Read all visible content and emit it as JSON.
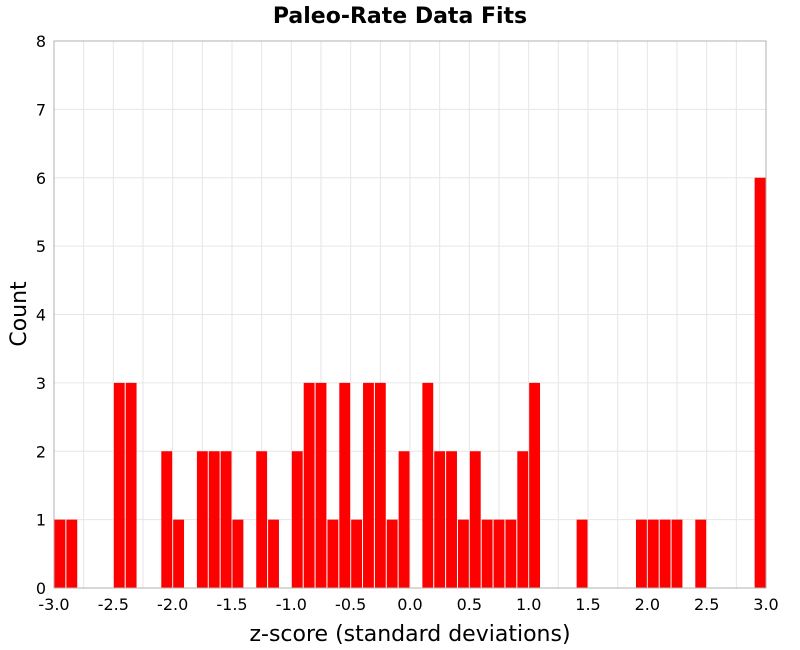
{
  "chart_data": {
    "type": "bar",
    "title": "Paleo-Rate Data Fits",
    "xlabel": "z-score (standard deviations)",
    "ylabel": "Count",
    "xlim": [
      -3.0,
      3.0
    ],
    "ylim": [
      0,
      8
    ],
    "bin_width": 0.1,
    "x_ticks": [
      "-3.0",
      "-2.5",
      "-2.0",
      "-1.5",
      "-1.0",
      "-0.5",
      "0.0",
      "0.5",
      "1.0",
      "1.5",
      "2.0",
      "2.5",
      "3.0"
    ],
    "y_ticks": [
      "0",
      "1",
      "2",
      "3",
      "4",
      "5",
      "6",
      "7",
      "8"
    ],
    "grid": true,
    "bar_color": "#ff0000",
    "bins": [
      {
        "x": -2.95,
        "value": 1
      },
      {
        "x": -2.85,
        "value": 1
      },
      {
        "x": -2.45,
        "value": 3
      },
      {
        "x": -2.35,
        "value": 3
      },
      {
        "x": -2.05,
        "value": 2
      },
      {
        "x": -1.95,
        "value": 1
      },
      {
        "x": -1.75,
        "value": 2
      },
      {
        "x": -1.65,
        "value": 2
      },
      {
        "x": -1.55,
        "value": 2
      },
      {
        "x": -1.45,
        "value": 1
      },
      {
        "x": -1.25,
        "value": 2
      },
      {
        "x": -1.15,
        "value": 1
      },
      {
        "x": -0.95,
        "value": 2
      },
      {
        "x": -0.85,
        "value": 3
      },
      {
        "x": -0.75,
        "value": 3
      },
      {
        "x": -0.65,
        "value": 1
      },
      {
        "x": -0.55,
        "value": 3
      },
      {
        "x": -0.45,
        "value": 1
      },
      {
        "x": -0.35,
        "value": 3
      },
      {
        "x": -0.25,
        "value": 3
      },
      {
        "x": -0.15,
        "value": 1
      },
      {
        "x": -0.05,
        "value": 2
      },
      {
        "x": 0.15,
        "value": 3
      },
      {
        "x": 0.25,
        "value": 2
      },
      {
        "x": 0.35,
        "value": 2
      },
      {
        "x": 0.45,
        "value": 1
      },
      {
        "x": 0.55,
        "value": 2
      },
      {
        "x": 0.65,
        "value": 1
      },
      {
        "x": 0.75,
        "value": 1
      },
      {
        "x": 0.85,
        "value": 1
      },
      {
        "x": 0.95,
        "value": 2
      },
      {
        "x": 1.05,
        "value": 3
      },
      {
        "x": 1.45,
        "value": 1
      },
      {
        "x": 1.95,
        "value": 1
      },
      {
        "x": 2.05,
        "value": 1
      },
      {
        "x": 2.15,
        "value": 1
      },
      {
        "x": 2.25,
        "value": 1
      },
      {
        "x": 2.45,
        "value": 1
      },
      {
        "x": 2.95,
        "value": 6
      }
    ]
  }
}
